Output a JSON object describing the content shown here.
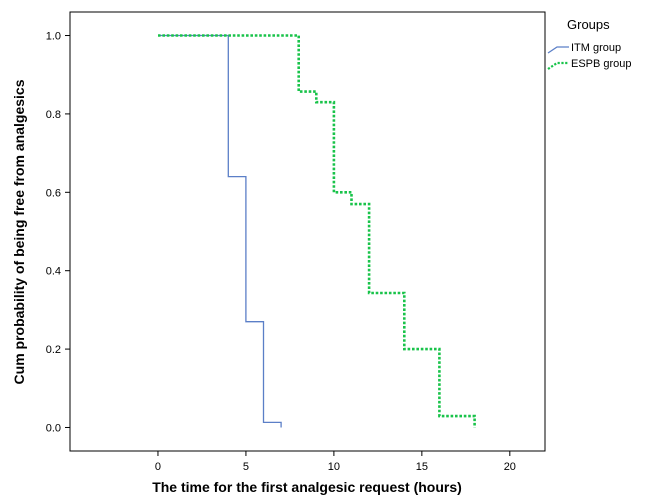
{
  "chart_data": {
    "type": "line",
    "step": true,
    "xlabel": "The time for the first analgesic request (hours)",
    "ylabel": "Cum probability of being free from analgesics",
    "xlim": [
      -5,
      22
    ],
    "ylim": [
      -0.06,
      1.06
    ],
    "xticks": [
      0,
      5,
      10,
      15,
      20
    ],
    "yticks": [
      0.0,
      0.2,
      0.4,
      0.6,
      0.8,
      1.0
    ],
    "ytick_labels": [
      "0.0",
      "0.2",
      "0.4",
      "0.6",
      "0.8",
      "1.0"
    ],
    "grid": false,
    "legend": {
      "title": "Groups",
      "placement": "outside-top-right"
    },
    "series": [
      {
        "name": "ITM group",
        "color": "#5b7fc7",
        "dash": "solid",
        "x": [
          0,
          4,
          4,
          5,
          5,
          6,
          6,
          7,
          7
        ],
        "y": [
          1.0,
          1.0,
          0.64,
          0.64,
          0.27,
          0.27,
          0.013,
          0.013,
          0.0
        ]
      },
      {
        "name": "ESPB group",
        "color": "#19c34a",
        "dash": "dotted",
        "x": [
          0,
          8,
          8,
          9,
          9,
          10,
          10,
          11,
          11,
          12,
          12,
          14,
          14,
          16,
          16,
          18,
          18
        ],
        "y": [
          1.0,
          1.0,
          0.857,
          0.857,
          0.83,
          0.83,
          0.6,
          0.6,
          0.57,
          0.57,
          0.343,
          0.343,
          0.2,
          0.2,
          0.029,
          0.029,
          0.0
        ]
      }
    ]
  }
}
